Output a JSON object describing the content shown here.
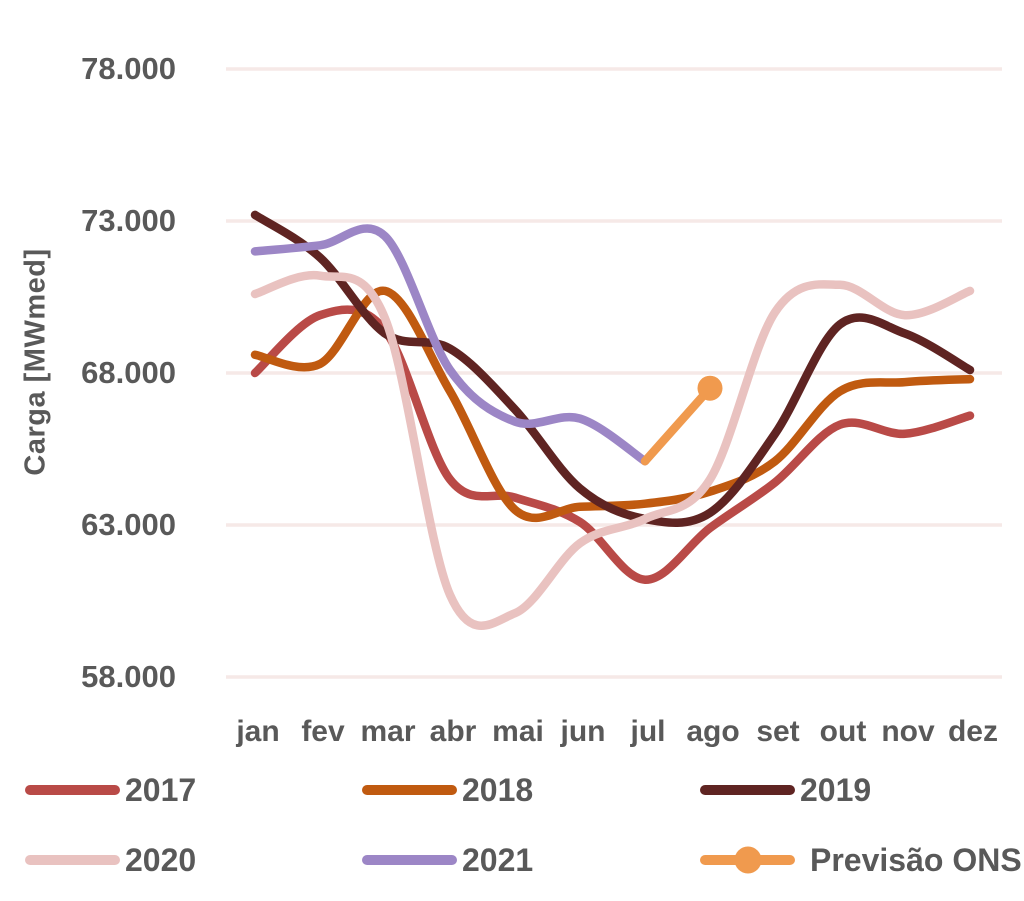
{
  "colors": {
    "background": "#ffffff",
    "grid": "#f6e9e7",
    "text": "#595959"
  },
  "y_axis": {
    "title": "Carga [MWmed]"
  },
  "chart_data": {
    "type": "line",
    "title": "",
    "xlabel": "",
    "ylabel": "Carga [MWmed]",
    "categories": [
      "jan",
      "fev",
      "mar",
      "abr",
      "mai",
      "jun",
      "jul",
      "ago",
      "set",
      "out",
      "nov",
      "dez"
    ],
    "ylim": [
      58000,
      78000
    ],
    "ytick_values": [
      78000,
      73000,
      68000,
      63000,
      58000
    ],
    "ytick_labels": [
      "78.000",
      "73.000",
      "68.000",
      "63.000",
      "58.000"
    ],
    "grid": "horizontal-only",
    "legend_position": "bottom",
    "series": [
      {
        "name": "2017",
        "color": "#b94a47",
        "values": [
          68000,
          69900,
          69400,
          64500,
          63900,
          63100,
          61200,
          62900,
          64400,
          66300,
          66000,
          66600
        ]
      },
      {
        "name": "2018",
        "color": "#c05a10",
        "values": [
          68600,
          68300,
          70700,
          67400,
          63500,
          63600,
          63700,
          64100,
          65100,
          67400,
          67700,
          67800
        ]
      },
      {
        "name": "2019",
        "color": "#5f2422",
        "values": [
          73200,
          71800,
          69300,
          68800,
          66800,
          64200,
          63200,
          63400,
          66000,
          69600,
          69300,
          68100
        ]
      },
      {
        "name": "2020",
        "color": "#e9c2c0",
        "values": [
          70600,
          71200,
          69800,
          60700,
          60100,
          62400,
          63200,
          64500,
          70000,
          70900,
          69900,
          70700
        ]
      },
      {
        "name": "2021",
        "color": "#9c86c6",
        "values": [
          72000,
          72200,
          72500,
          68100,
          66400,
          66500,
          65100,
          null,
          null,
          null,
          null,
          null
        ]
      },
      {
        "name": "Previsão ONS",
        "color": "#f09a4e",
        "values": [
          null,
          null,
          null,
          null,
          null,
          null,
          65100,
          67500,
          null,
          null,
          null,
          null
        ],
        "marker_index": 7
      }
    ]
  }
}
